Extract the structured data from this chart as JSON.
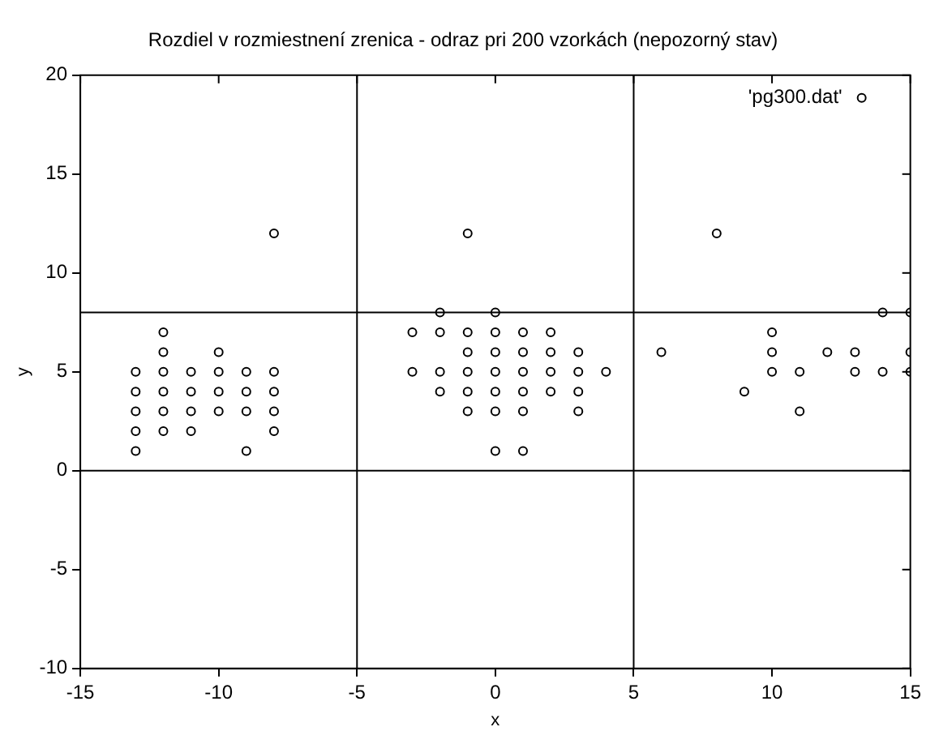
{
  "chart_data": {
    "type": "scatter",
    "title": "Rozdiel v rozmiestnení zrenica - odraz pri 200 vzorkách (nepozorný stav)",
    "xlabel": "x",
    "ylabel": "y",
    "xlim": [
      -15,
      15
    ],
    "xticks": [
      -15,
      -10,
      -5,
      0,
      5,
      10,
      15
    ],
    "ylim": [
      -10,
      20
    ],
    "yticks": [
      -10,
      -5,
      0,
      5,
      10,
      15,
      20
    ],
    "grid": false,
    "legend": "top right",
    "marker": "circle",
    "ref_lines": [
      {
        "axis": "x",
        "value": -5,
        "color": "#000000"
      },
      {
        "axis": "x",
        "value": 5,
        "color": "#000000"
      },
      {
        "axis": "y",
        "value": 0,
        "color": "#000000"
      },
      {
        "axis": "y",
        "value": 8,
        "color": "#000000"
      }
    ],
    "series": [
      {
        "name": "'pg300.dat'",
        "color": "#000000",
        "x": [
          -8,
          -12,
          -12,
          -10,
          -13,
          -12,
          -11,
          -10,
          -9,
          -8,
          -13,
          -12,
          -11,
          -10,
          -9,
          -8,
          -13,
          -12,
          -11,
          -10,
          -9,
          -8,
          -13,
          -12,
          -11,
          -8,
          -13,
          -9,
          -1,
          -2,
          0,
          -3,
          -2,
          -1,
          0,
          1,
          2,
          -1,
          0,
          1,
          2,
          3,
          -3,
          -2,
          -1,
          0,
          1,
          2,
          3,
          4,
          -2,
          -1,
          0,
          1,
          2,
          3,
          -1,
          0,
          1,
          3,
          0,
          1,
          8,
          14,
          15,
          10,
          6,
          10,
          12,
          13,
          15,
          10,
          11,
          13,
          14,
          15,
          9,
          11
        ],
        "values": [
          12,
          7,
          6,
          6,
          5,
          5,
          5,
          5,
          5,
          5,
          4,
          4,
          4,
          4,
          4,
          4,
          3,
          3,
          3,
          3,
          3,
          3,
          2,
          2,
          2,
          2,
          1,
          1,
          12,
          8,
          8,
          7,
          7,
          7,
          7,
          7,
          7,
          6,
          6,
          6,
          6,
          6,
          5,
          5,
          5,
          5,
          5,
          5,
          5,
          5,
          4,
          4,
          4,
          4,
          4,
          4,
          3,
          3,
          3,
          3,
          1,
          1,
          12,
          8,
          8,
          7,
          6,
          6,
          6,
          6,
          6,
          5,
          5,
          5,
          5,
          5,
          4,
          3
        ]
      }
    ]
  }
}
